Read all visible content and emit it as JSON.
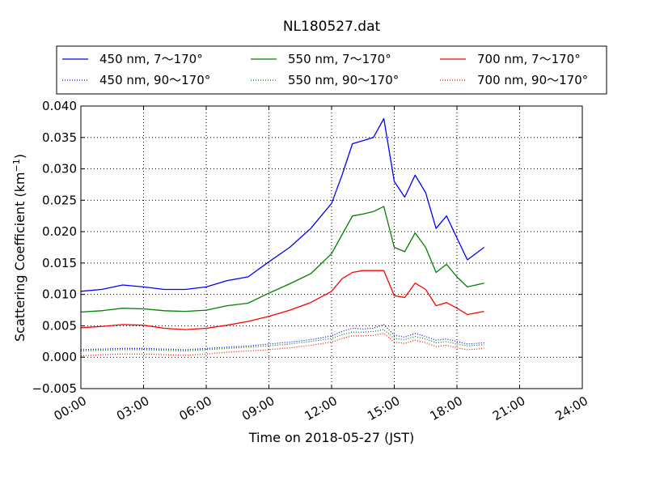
{
  "chart_data": {
    "type": "line",
    "title": "NL180527.dat",
    "xlabel": "Time on 2018-05-27 (JST)",
    "ylabel_main": "Scattering Coefficient (km",
    "ylabel_sup": "−1",
    "ylabel_close": ")",
    "xlim": [
      0,
      24
    ],
    "ylim": [
      -0.005,
      0.04
    ],
    "x_ticks": [
      {
        "value": 0,
        "label": "00:00"
      },
      {
        "value": 3,
        "label": "03:00"
      },
      {
        "value": 6,
        "label": "06:00"
      },
      {
        "value": 9,
        "label": "09:00"
      },
      {
        "value": 12,
        "label": "12:00"
      },
      {
        "value": 15,
        "label": "15:00"
      },
      {
        "value": 18,
        "label": "18:00"
      },
      {
        "value": 21,
        "label": "21:00"
      },
      {
        "value": 24,
        "label": "24:00"
      }
    ],
    "y_ticks": [
      {
        "value": 0.04,
        "label": "0.040"
      },
      {
        "value": 0.035,
        "label": "0.035"
      },
      {
        "value": 0.03,
        "label": "0.030"
      },
      {
        "value": 0.025,
        "label": "0.025"
      },
      {
        "value": 0.02,
        "label": "0.020"
      },
      {
        "value": 0.015,
        "label": "0.015"
      },
      {
        "value": 0.01,
        "label": "0.010"
      },
      {
        "value": 0.005,
        "label": "0.005"
      },
      {
        "value": 0.0,
        "label": "0.000"
      },
      {
        "value": -0.005,
        "label": "−0.005"
      }
    ],
    "grid": true,
    "legend": "top, outside plot, 3 columns",
    "x": [
      0,
      1,
      2,
      3,
      4,
      5,
      6,
      7,
      8,
      9,
      10,
      11,
      12,
      12.5,
      13,
      13.5,
      14,
      14.5,
      15,
      15.5,
      16,
      16.5,
      17,
      17.5,
      18,
      18.5,
      19.3
    ],
    "series": [
      {
        "name": "450 nm, 7～170°",
        "color": "#0000ff",
        "style": "solid",
        "values": [
          0.0105,
          0.0108,
          0.0115,
          0.0112,
          0.0108,
          0.0108,
          0.0112,
          0.0122,
          0.0128,
          0.0152,
          0.0175,
          0.0205,
          0.0245,
          0.029,
          0.034,
          0.0345,
          0.035,
          0.038,
          0.028,
          0.0255,
          0.029,
          0.0262,
          0.0205,
          0.0225,
          0.019,
          0.0155,
          0.0175
        ]
      },
      {
        "name": "550 nm, 7～170°",
        "color": "#008000",
        "style": "solid",
        "values": [
          0.0072,
          0.0074,
          0.0078,
          0.0077,
          0.0074,
          0.0073,
          0.0075,
          0.0082,
          0.0086,
          0.0102,
          0.0117,
          0.0133,
          0.0165,
          0.0195,
          0.0225,
          0.0228,
          0.0232,
          0.024,
          0.0175,
          0.0168,
          0.0198,
          0.0175,
          0.0135,
          0.0148,
          0.0128,
          0.0112,
          0.0118
        ]
      },
      {
        "name": "700 nm, 7～170°",
        "color": "#ff0000",
        "style": "solid",
        "values": [
          0.0047,
          0.0049,
          0.0052,
          0.0051,
          0.0046,
          0.0044,
          0.0046,
          0.0051,
          0.0057,
          0.0065,
          0.0075,
          0.0087,
          0.0105,
          0.0125,
          0.0135,
          0.0138,
          0.0138,
          0.0138,
          0.0098,
          0.0095,
          0.0118,
          0.0108,
          0.0082,
          0.0087,
          0.0078,
          0.0068,
          0.0073
        ]
      },
      {
        "name": "450 nm, 90～170°",
        "color": "#0000ff",
        "style": "dotted",
        "values": [
          0.0012,
          0.0013,
          0.0014,
          0.0014,
          0.0013,
          0.0012,
          0.0014,
          0.0016,
          0.0018,
          0.0021,
          0.0024,
          0.0028,
          0.0034,
          0.0041,
          0.0046,
          0.0045,
          0.0046,
          0.0052,
          0.0035,
          0.0032,
          0.0038,
          0.0033,
          0.0027,
          0.0029,
          0.0025,
          0.0021,
          0.0023
        ]
      },
      {
        "name": "550 nm, 90～170°",
        "color": "#008000",
        "style": "dotted",
        "values": [
          0.001,
          0.0011,
          0.0012,
          0.0012,
          0.0011,
          0.001,
          0.0012,
          0.0014,
          0.0016,
          0.0018,
          0.0021,
          0.0025,
          0.003,
          0.0036,
          0.004,
          0.004,
          0.0041,
          0.0044,
          0.003,
          0.0028,
          0.0033,
          0.0029,
          0.0023,
          0.0025,
          0.0021,
          0.0018,
          0.002
        ]
      },
      {
        "name": "700 nm, 90～170°",
        "color": "#ff0000",
        "style": "dotted",
        "values": [
          0.0002,
          0.0004,
          0.0005,
          0.0005,
          0.0004,
          0.0003,
          0.0005,
          0.0008,
          0.001,
          0.0012,
          0.0015,
          0.0019,
          0.0024,
          0.003,
          0.0034,
          0.0034,
          0.0035,
          0.0038,
          0.0024,
          0.0022,
          0.0027,
          0.0023,
          0.0017,
          0.0019,
          0.0015,
          0.0012,
          0.0014
        ]
      }
    ]
  }
}
